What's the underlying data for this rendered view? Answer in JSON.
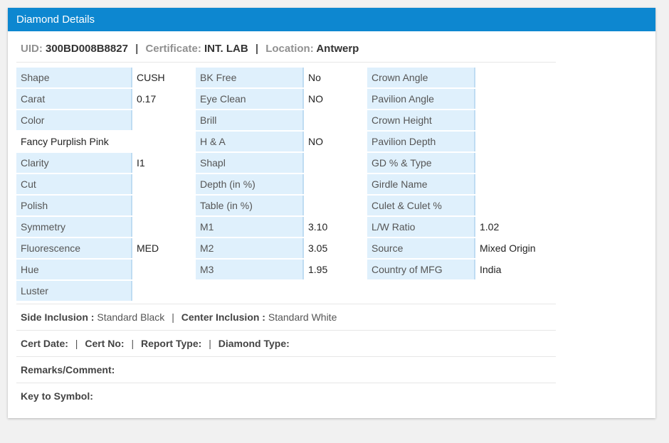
{
  "header": {
    "title": "Diamond Details"
  },
  "summary": {
    "uid_label": "UID:",
    "uid_value": "300BD008B8827",
    "cert_label": "Certificate:",
    "cert_value": "INT. LAB",
    "loc_label": "Location:",
    "loc_value": "Antwerp",
    "sep": "|"
  },
  "grid": {
    "col1": [
      {
        "label": "Shape",
        "value": "CUSH"
      },
      {
        "label": "Carat",
        "value": "0.17"
      },
      {
        "label": "Color",
        "value": ""
      },
      {
        "label": "Fancy Purplish Pink",
        "value": ""
      },
      {
        "label": "Clarity",
        "value": "I1"
      },
      {
        "label": "Cut",
        "value": ""
      },
      {
        "label": "Polish",
        "value": ""
      },
      {
        "label": "Symmetry",
        "value": ""
      },
      {
        "label": "Fluorescence",
        "value": "MED"
      },
      {
        "label": "Hue",
        "value": ""
      },
      {
        "label": "Luster",
        "value": ""
      }
    ],
    "col2": [
      {
        "label": "BK Free",
        "value": "No"
      },
      {
        "label": "Eye Clean",
        "value": "NO"
      },
      {
        "label": "Brill",
        "value": ""
      },
      {
        "label": "H & A",
        "value": "NO"
      },
      {
        "label": "Shapl",
        "value": ""
      },
      {
        "label": "Depth (in %)",
        "value": ""
      },
      {
        "label": "Table (in %)",
        "value": ""
      },
      {
        "label": "M1",
        "value": "3.10"
      },
      {
        "label": "M2",
        "value": "3.05"
      },
      {
        "label": "M3",
        "value": "1.95"
      }
    ],
    "col3": [
      {
        "label": "Crown Angle",
        "value": ""
      },
      {
        "label": "Pavilion Angle",
        "value": ""
      },
      {
        "label": "Crown Height",
        "value": ""
      },
      {
        "label": "Pavilion Depth",
        "value": ""
      },
      {
        "label": "GD % & Type",
        "value": ""
      },
      {
        "label": "Girdle Name",
        "value": ""
      },
      {
        "label": "Culet & Culet %",
        "value": ""
      },
      {
        "label": "L/W Ratio",
        "value": "1.02"
      },
      {
        "label": "Source",
        "value": "Mixed Origin"
      },
      {
        "label": "Country of MFG",
        "value": "India"
      }
    ]
  },
  "inclusion": {
    "side_label": "Side Inclusion :",
    "side_value": "Standard Black",
    "center_label": "Center Inclusion :",
    "center_value": "Standard White",
    "sep": "|"
  },
  "cert": {
    "date_label": "Cert Date:",
    "no_label": "Cert No:",
    "report_label": "Report Type:",
    "diamond_label": "Diamond Type:",
    "sep": "|"
  },
  "remarks": {
    "label": "Remarks/Comment:"
  },
  "key": {
    "label": "Key to Symbol:"
  }
}
